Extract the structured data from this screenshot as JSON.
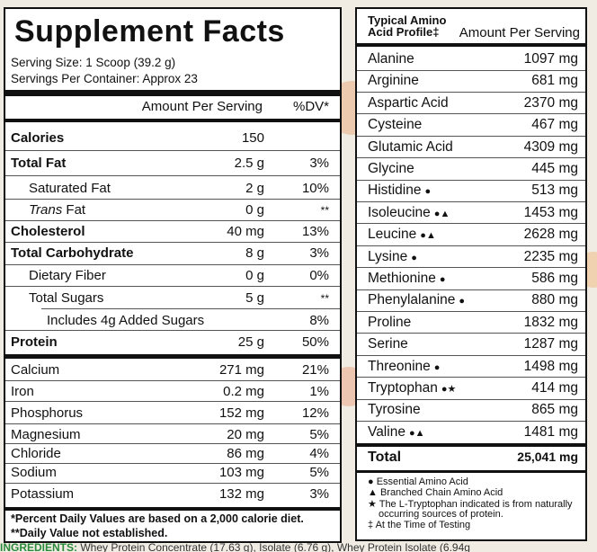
{
  "supplement_facts": {
    "title": "Supplement Facts",
    "serving_size": "Serving Size: 1 Scoop (39.2 g)",
    "servings_per_container": "Servings Per Container: Approx 23",
    "header_amount": "Amount Per Serving",
    "header_dv": "%DV*",
    "rows": [
      {
        "label": "Calories",
        "amount": "150",
        "dv": ""
      },
      {
        "label": "Total Fat",
        "amount": "2.5 g",
        "dv": "3%"
      },
      {
        "label": "Saturated Fat",
        "amount": "2 g",
        "dv": "10%"
      },
      {
        "label": "Trans",
        "label_suffix": " Fat",
        "amount": "0 g",
        "dv": "**"
      },
      {
        "label": "Cholesterol",
        "amount": "40 mg",
        "dv": "13%"
      },
      {
        "label": "Total Carbohydrate",
        "amount": "8 g",
        "dv": "3%"
      },
      {
        "label": "Dietary Fiber",
        "amount": "0 g",
        "dv": "0%"
      },
      {
        "label": "Total Sugars",
        "amount": "5 g",
        "dv": "**"
      },
      {
        "label": "Includes 4g Added Sugars",
        "amount": "",
        "dv": "8%"
      },
      {
        "label": "Protein",
        "amount": "25 g",
        "dv": "50%"
      },
      {
        "label": "Calcium",
        "amount": "271 mg",
        "dv": "21%"
      },
      {
        "label": "Iron",
        "amount": "0.2 mg",
        "dv": "1%"
      },
      {
        "label": "Phosphorus",
        "amount": "152 mg",
        "dv": "12%"
      },
      {
        "label": "Magnesium",
        "amount": "20 mg",
        "dv": "5%"
      },
      {
        "label": "Chloride",
        "amount": "86 mg",
        "dv": "4%"
      },
      {
        "label": "Sodium",
        "amount": "103 mg",
        "dv": "5%"
      },
      {
        "label": "Potassium",
        "amount": "132 mg",
        "dv": "3%"
      }
    ],
    "footnote_1": "*Percent Daily Values are based on a 2,000 calorie diet.",
    "footnote_2": "**Daily Value not established."
  },
  "amino_profile": {
    "title_line1": "Typical Amino",
    "title_line2": "Acid Profile‡",
    "header_amount": "Amount Per Serving",
    "rows": [
      {
        "name": "Alanine",
        "marks": "",
        "value": "1097 mg"
      },
      {
        "name": "Arginine",
        "marks": "",
        "value": "681 mg"
      },
      {
        "name": "Aspartic Acid",
        "marks": "",
        "value": "2370 mg"
      },
      {
        "name": "Cysteine",
        "marks": "",
        "value": "467 mg"
      },
      {
        "name": "Glutamic Acid",
        "marks": "",
        "value": "4309 mg"
      },
      {
        "name": "Glycine",
        "marks": "",
        "value": "445 mg"
      },
      {
        "name": "Histidine",
        "marks": "●",
        "value": "513 mg"
      },
      {
        "name": "Isoleucine",
        "marks": "●▲",
        "value": "1453 mg"
      },
      {
        "name": "Leucine",
        "marks": "●▲",
        "value": "2628 mg"
      },
      {
        "name": "Lysine",
        "marks": "●",
        "value": "2235 mg"
      },
      {
        "name": "Methionine",
        "marks": "●",
        "value": "586 mg"
      },
      {
        "name": "Phenylalanine",
        "marks": "●",
        "value": "880 mg"
      },
      {
        "name": "Proline",
        "marks": "",
        "value": "1832 mg"
      },
      {
        "name": "Serine",
        "marks": "",
        "value": "1287 mg"
      },
      {
        "name": "Threonine",
        "marks": "●",
        "value": "1498 mg"
      },
      {
        "name": "Tryptophan",
        "marks": "●★",
        "value": "414 mg"
      },
      {
        "name": "Tyrosine",
        "marks": "",
        "value": "865 mg"
      },
      {
        "name": "Valine",
        "marks": "●▲",
        "value": "1481 mg"
      }
    ],
    "total_label": "Total",
    "total_value": "25,041 mg",
    "legend": [
      "●  Essential Amino Acid",
      "▲  Branched Chain Amino Acid",
      "★  The L-Tryptophan indicated is from naturally",
      "     occurring sources of protein.",
      "‡  At the Time of Testing"
    ]
  },
  "ingredients": {
    "label": "INGREDIENTS:",
    "text": "Whey Protein Concentrate (17.63 g), Isolate (6.76 g), Whey Protein Isolate (6.94g"
  }
}
